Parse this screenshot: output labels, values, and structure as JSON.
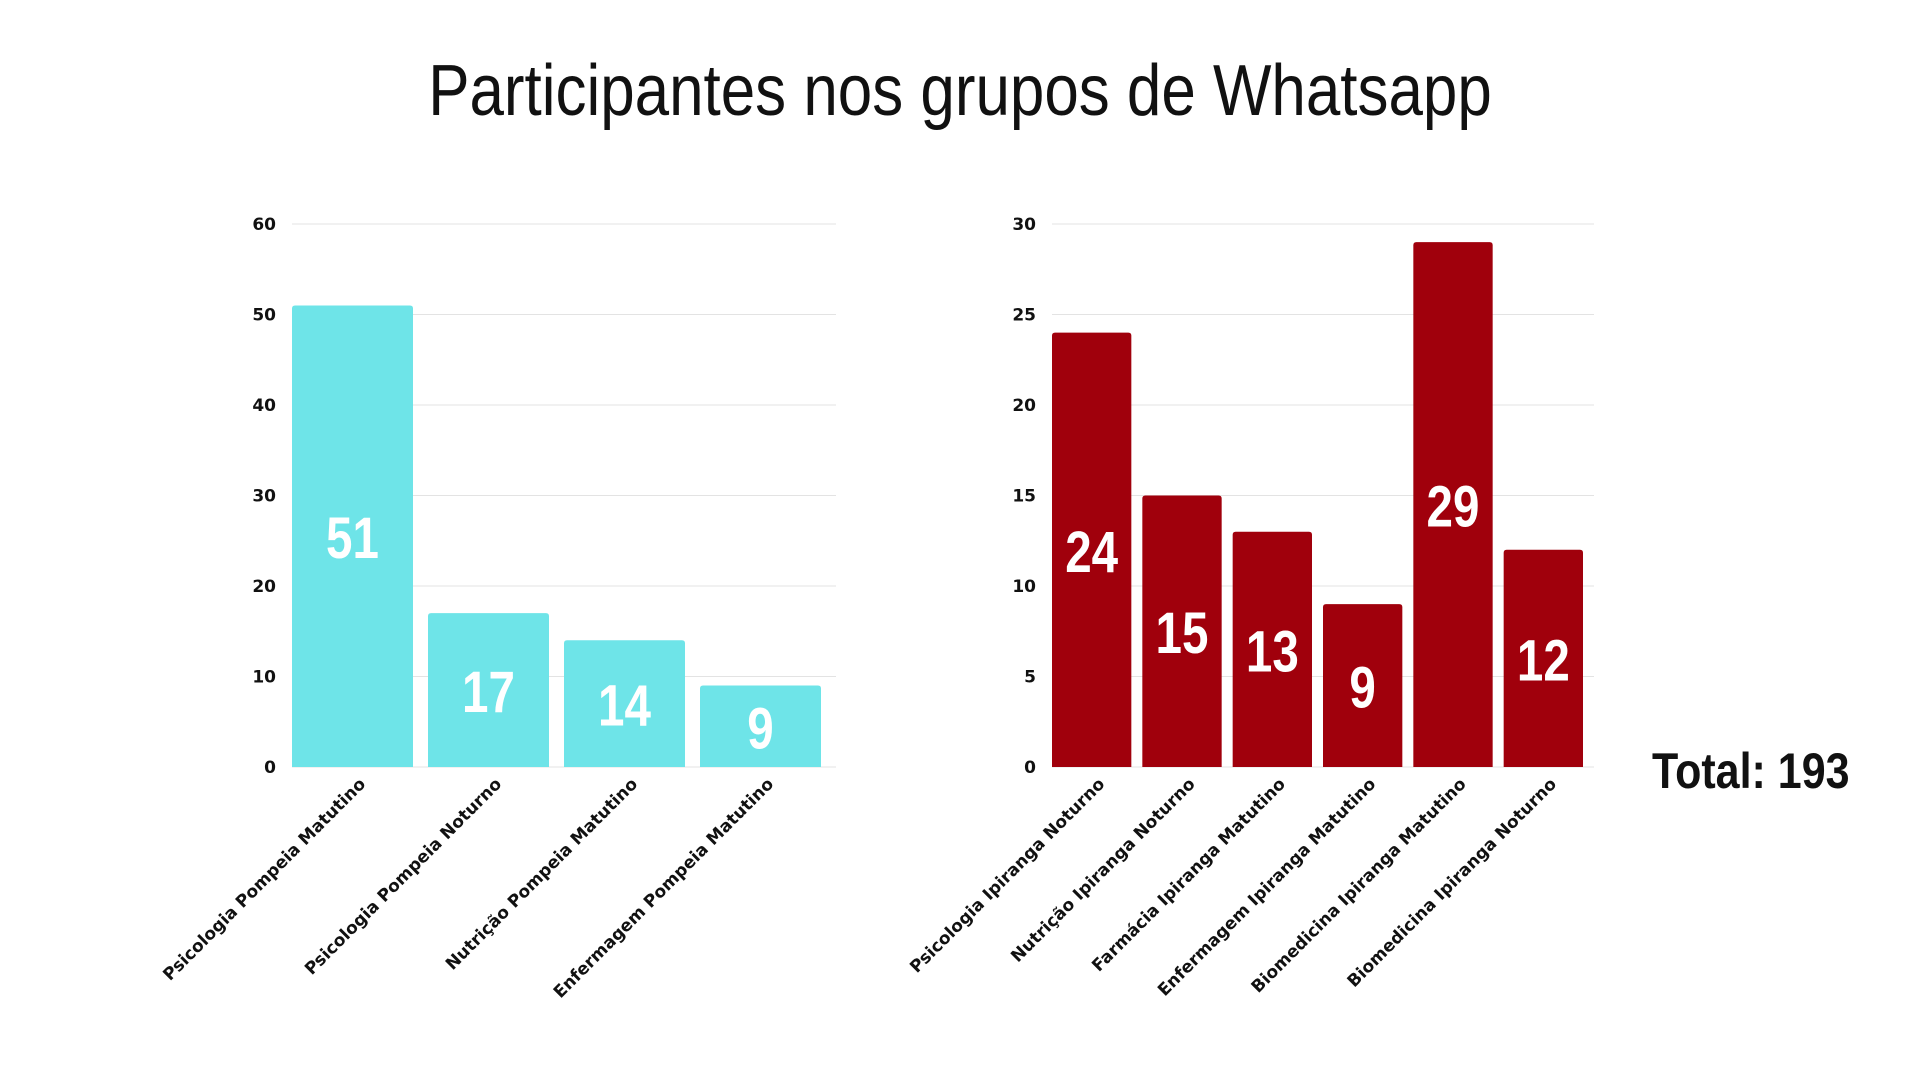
{
  "title": "Participantes nos grupos de Whatsapp",
  "total_label": "Total: 193",
  "colors": {
    "left_bars": "#6ee4e8",
    "right_bars": "#a0000c",
    "grid": "#e3e3e3",
    "text": "#111111",
    "value_text": "#ffffff"
  },
  "chart_data": [
    {
      "type": "bar",
      "title": "",
      "xlabel": "",
      "ylabel": "",
      "ylim": [
        0,
        60
      ],
      "yticks": [
        0,
        10,
        20,
        30,
        40,
        50,
        60
      ],
      "grid": true,
      "data_labels": true,
      "categories": [
        "Psicologia Pompeia Matutino",
        "Psicologia Pompeia Noturno",
        "Nutrição Pompeia Matutino",
        "Enfermagem Pompeia Matutino"
      ],
      "values": [
        51,
        17,
        14,
        9
      ],
      "color": "#6ee4e8"
    },
    {
      "type": "bar",
      "title": "",
      "xlabel": "",
      "ylabel": "",
      "ylim": [
        0,
        30
      ],
      "yticks": [
        0,
        5,
        10,
        15,
        20,
        25,
        30
      ],
      "grid": true,
      "data_labels": true,
      "categories": [
        "Psicologia Ipiranga Noturno",
        "Nutrição Ipiranga Noturno",
        "Farmácia Ipiranga Matutino",
        "Enfermagem Ipiranga Matutino",
        "Biomedicina Ipiranga Matutino",
        "Biomedicina Ipiranga Noturno"
      ],
      "values": [
        24,
        15,
        13,
        9,
        29,
        12
      ],
      "color": "#a0000c"
    }
  ]
}
